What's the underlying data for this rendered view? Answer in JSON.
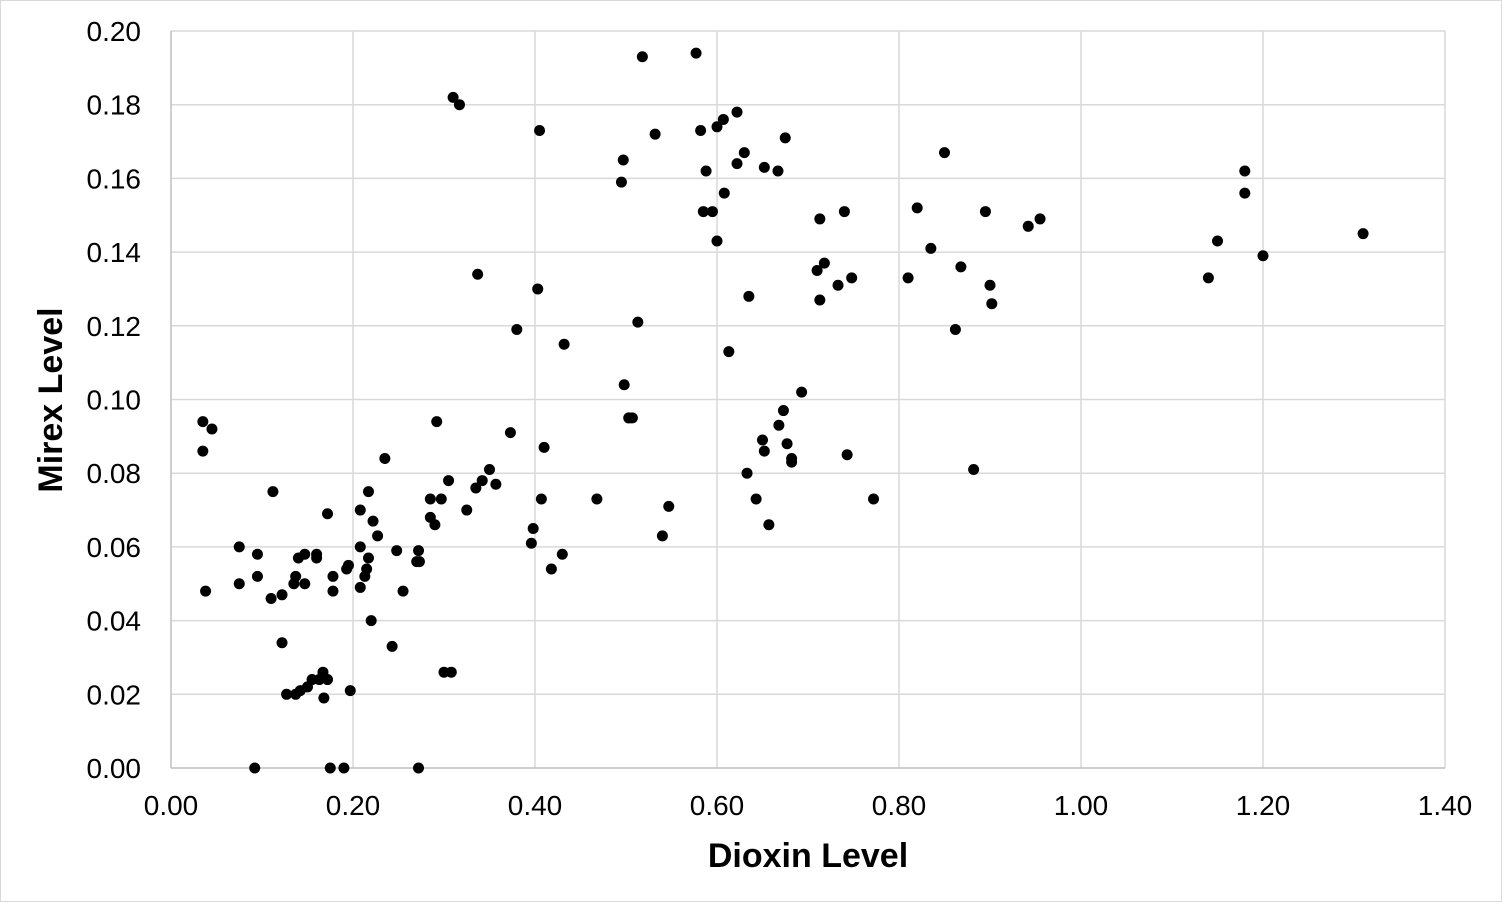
{
  "chart_data": {
    "type": "scatter",
    "title": "",
    "xlabel": "Dioxin Level",
    "ylabel": "Mirex Level",
    "xlim": [
      0,
      1.4
    ],
    "ylim": [
      0,
      0.2
    ],
    "x_ticks": [
      "0.00",
      "0.20",
      "0.40",
      "0.60",
      "0.80",
      "1.00",
      "1.20",
      "1.40"
    ],
    "y_ticks": [
      "0.00",
      "0.02",
      "0.04",
      "0.06",
      "0.08",
      "0.10",
      "0.12",
      "0.14",
      "0.16",
      "0.18",
      "0.20"
    ],
    "grid": true,
    "legend": "none",
    "marker_color": "#000000",
    "series": [
      {
        "points": [
          [
            0.035,
            0.094
          ],
          [
            0.045,
            0.092
          ],
          [
            0.035,
            0.086
          ],
          [
            0.038,
            0.048
          ],
          [
            0.075,
            0.06
          ],
          [
            0.075,
            0.05
          ],
          [
            0.095,
            0.058
          ],
          [
            0.095,
            0.052
          ],
          [
            0.092,
            0.0
          ],
          [
            0.112,
            0.075
          ],
          [
            0.11,
            0.046
          ],
          [
            0.122,
            0.047
          ],
          [
            0.122,
            0.034
          ],
          [
            0.127,
            0.02
          ],
          [
            0.135,
            0.05
          ],
          [
            0.137,
            0.052
          ],
          [
            0.14,
            0.057
          ],
          [
            0.147,
            0.058
          ],
          [
            0.147,
            0.05
          ],
          [
            0.137,
            0.02
          ],
          [
            0.142,
            0.021
          ],
          [
            0.15,
            0.022
          ],
          [
            0.155,
            0.024
          ],
          [
            0.16,
            0.058
          ],
          [
            0.16,
            0.057
          ],
          [
            0.163,
            0.024
          ],
          [
            0.167,
            0.026
          ],
          [
            0.168,
            0.019
          ],
          [
            0.172,
            0.024
          ],
          [
            0.172,
            0.069
          ],
          [
            0.178,
            0.052
          ],
          [
            0.178,
            0.048
          ],
          [
            0.175,
            0.0
          ],
          [
            0.19,
            0.0
          ],
          [
            0.193,
            0.054
          ],
          [
            0.195,
            0.055
          ],
          [
            0.197,
            0.021
          ],
          [
            0.208,
            0.07
          ],
          [
            0.208,
            0.06
          ],
          [
            0.208,
            0.049
          ],
          [
            0.213,
            0.052
          ],
          [
            0.215,
            0.054
          ],
          [
            0.217,
            0.057
          ],
          [
            0.217,
            0.075
          ],
          [
            0.22,
            0.04
          ],
          [
            0.222,
            0.067
          ],
          [
            0.227,
            0.063
          ],
          [
            0.235,
            0.084
          ],
          [
            0.243,
            0.033
          ],
          [
            0.248,
            0.059
          ],
          [
            0.255,
            0.048
          ],
          [
            0.27,
            0.056
          ],
          [
            0.272,
            0.059
          ],
          [
            0.273,
            0.056
          ],
          [
            0.272,
            0.0
          ],
          [
            0.285,
            0.073
          ],
          [
            0.285,
            0.068
          ],
          [
            0.29,
            0.066
          ],
          [
            0.292,
            0.094
          ],
          [
            0.297,
            0.073
          ],
          [
            0.3,
            0.026
          ],
          [
            0.305,
            0.078
          ],
          [
            0.308,
            0.026
          ],
          [
            0.31,
            0.182
          ],
          [
            0.317,
            0.18
          ],
          [
            0.325,
            0.07
          ],
          [
            0.335,
            0.076
          ],
          [
            0.337,
            0.134
          ],
          [
            0.342,
            0.078
          ],
          [
            0.35,
            0.081
          ],
          [
            0.357,
            0.077
          ],
          [
            0.373,
            0.091
          ],
          [
            0.38,
            0.119
          ],
          [
            0.396,
            0.061
          ],
          [
            0.398,
            0.065
          ],
          [
            0.403,
            0.13
          ],
          [
            0.405,
            0.173
          ],
          [
            0.407,
            0.073
          ],
          [
            0.41,
            0.087
          ],
          [
            0.418,
            0.054
          ],
          [
            0.43,
            0.058
          ],
          [
            0.432,
            0.115
          ],
          [
            0.468,
            0.073
          ],
          [
            0.495,
            0.159
          ],
          [
            0.497,
            0.165
          ],
          [
            0.498,
            0.104
          ],
          [
            0.503,
            0.095
          ],
          [
            0.507,
            0.095
          ],
          [
            0.513,
            0.121
          ],
          [
            0.518,
            0.193
          ],
          [
            0.532,
            0.172
          ],
          [
            0.54,
            0.063
          ],
          [
            0.547,
            0.071
          ],
          [
            0.577,
            0.194
          ],
          [
            0.582,
            0.173
          ],
          [
            0.585,
            0.151
          ],
          [
            0.588,
            0.162
          ],
          [
            0.595,
            0.151
          ],
          [
            0.6,
            0.143
          ],
          [
            0.6,
            0.174
          ],
          [
            0.607,
            0.176
          ],
          [
            0.608,
            0.156
          ],
          [
            0.613,
            0.113
          ],
          [
            0.622,
            0.178
          ],
          [
            0.622,
            0.164
          ],
          [
            0.63,
            0.167
          ],
          [
            0.633,
            0.08
          ],
          [
            0.635,
            0.128
          ],
          [
            0.643,
            0.073
          ],
          [
            0.65,
            0.089
          ],
          [
            0.652,
            0.163
          ],
          [
            0.652,
            0.086
          ],
          [
            0.657,
            0.066
          ],
          [
            0.667,
            0.162
          ],
          [
            0.668,
            0.093
          ],
          [
            0.673,
            0.097
          ],
          [
            0.675,
            0.171
          ],
          [
            0.677,
            0.088
          ],
          [
            0.682,
            0.084
          ],
          [
            0.682,
            0.083
          ],
          [
            0.693,
            0.102
          ],
          [
            0.71,
            0.135
          ],
          [
            0.713,
            0.127
          ],
          [
            0.713,
            0.149
          ],
          [
            0.718,
            0.137
          ],
          [
            0.733,
            0.131
          ],
          [
            0.74,
            0.151
          ],
          [
            0.743,
            0.085
          ],
          [
            0.748,
            0.133
          ],
          [
            0.772,
            0.073
          ],
          [
            0.81,
            0.133
          ],
          [
            0.82,
            0.152
          ],
          [
            0.835,
            0.141
          ],
          [
            0.85,
            0.167
          ],
          [
            0.862,
            0.119
          ],
          [
            0.868,
            0.136
          ],
          [
            0.882,
            0.081
          ],
          [
            0.895,
            0.151
          ],
          [
            0.9,
            0.131
          ],
          [
            0.902,
            0.126
          ],
          [
            0.942,
            0.147
          ],
          [
            0.955,
            0.149
          ],
          [
            1.14,
            0.133
          ],
          [
            1.15,
            0.143
          ],
          [
            1.18,
            0.162
          ],
          [
            1.18,
            0.156
          ],
          [
            1.2,
            0.139
          ],
          [
            1.31,
            0.145
          ]
        ]
      }
    ]
  }
}
